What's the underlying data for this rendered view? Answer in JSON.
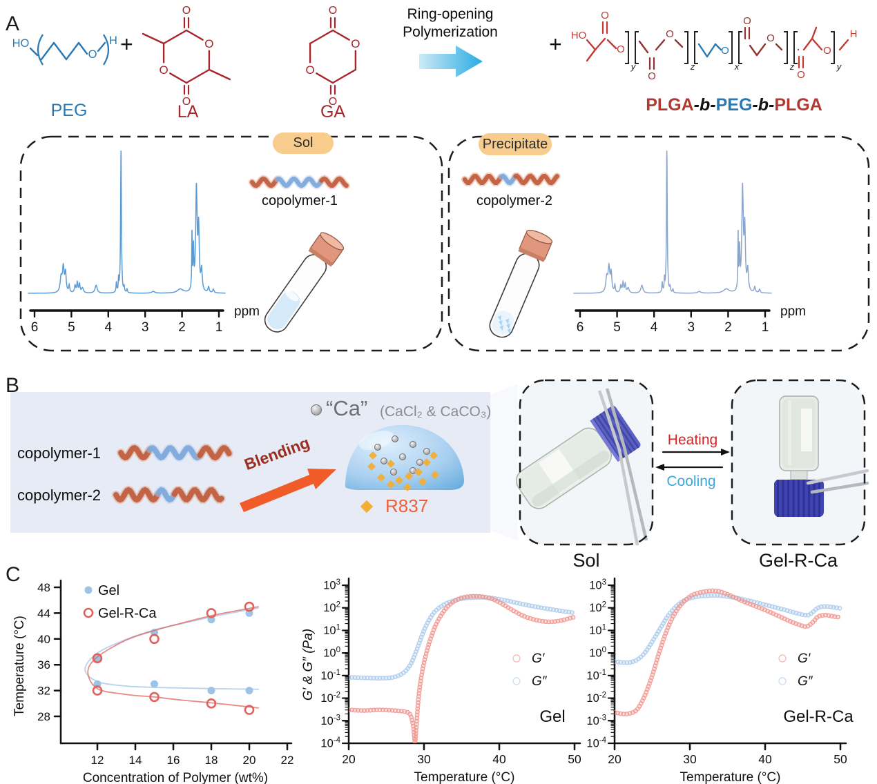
{
  "panel_a": {
    "label": "A",
    "plus": "+",
    "arrow_caption": [
      "Ring-opening",
      "Polymerization"
    ],
    "monomer_labels": {
      "peg": "PEG",
      "la": "LA",
      "ga": "GA"
    },
    "symbols": {
      "ho": "HO",
      "h": "H",
      "o": "O",
      "sub_x": "x",
      "sub_y": "y",
      "sub_z": "z"
    },
    "product_label": [
      {
        "t": "PLGA",
        "c": "#b03a32"
      },
      {
        "t": "-b-",
        "c": "#111111"
      },
      {
        "t": "PEG",
        "c": "#2878b4"
      },
      {
        "t": "-b-",
        "c": "#111111"
      },
      {
        "t": "PLGA",
        "c": "#b03a32"
      }
    ],
    "sol_card": {
      "badge": "Sol",
      "copolymer": "copolymer-1"
    },
    "precipitate_card": {
      "badge": "Precipitate",
      "copolymer": "copolymer-2"
    },
    "nmr": {
      "xticks": [
        6,
        5,
        4,
        3,
        2,
        1
      ],
      "unit": "ppm",
      "peaks": [
        [
          5.28,
          0.1,
          0.03
        ],
        [
          5.22,
          0.17,
          0.028
        ],
        [
          5.16,
          0.13,
          0.022
        ],
        [
          5.06,
          0.05,
          0.015
        ],
        [
          4.9,
          0.05,
          0.02
        ],
        [
          4.84,
          0.07,
          0.018
        ],
        [
          4.78,
          0.06,
          0.018
        ],
        [
          4.7,
          0.035,
          0.03
        ],
        [
          4.33,
          0.055,
          0.035
        ],
        [
          3.78,
          0.07,
          0.012
        ],
        [
          3.72,
          0.09,
          0.01
        ],
        [
          3.655,
          1.0,
          0.013
        ],
        [
          3.57,
          0.035,
          0.012
        ],
        [
          3.49,
          0.025,
          0.012
        ],
        [
          2.78,
          0.012,
          0.05
        ],
        [
          2.05,
          0.028,
          0.09
        ],
        [
          1.73,
          0.4,
          0.009
        ],
        [
          1.69,
          0.28,
          0.012
        ],
        [
          1.61,
          0.72,
          0.024
        ],
        [
          1.55,
          0.42,
          0.02
        ],
        [
          1.47,
          0.15,
          0.022
        ],
        [
          1.28,
          0.04,
          0.02
        ],
        [
          1.15,
          0.025,
          0.02
        ]
      ]
    }
  },
  "panel_b": {
    "label": "B",
    "copolymer1": "copolymer-1",
    "copolymer2": "copolymer-2",
    "blending": "Blending",
    "ca_title": "“Ca”",
    "ca_detail": "(CaCl₂ & CaCO₃)",
    "r837": "R837",
    "heating": "Heating",
    "cooling": "Cooling",
    "sol_photo_label": "Sol",
    "gel_photo_label": "Gel-R-Ca"
  },
  "panel_c": {
    "label": "C"
  },
  "chart_data": [
    {
      "type": "scatter",
      "title": "",
      "xlabel": "Concentration of Polymer (wt%)",
      "ylabel": "Temperature (°C)",
      "xlim": [
        10.5,
        22
      ],
      "ylim": [
        26,
        48
      ],
      "xticks": [
        12,
        14,
        16,
        18,
        20,
        22
      ],
      "yticks": [
        28,
        32,
        36,
        40,
        44,
        48
      ],
      "legend_position": "top-left",
      "series": [
        {
          "name": "Gel",
          "marker": "filled-circle",
          "color": "#9dc3e6",
          "points": [
            [
              12,
              37
            ],
            [
              15,
              41
            ],
            [
              18,
              43
            ],
            [
              20,
              44
            ],
            [
              12,
              33
            ],
            [
              15,
              33
            ],
            [
              18,
              32
            ],
            [
              20,
              32
            ]
          ],
          "curve_upper": [
            [
              12,
              37.8
            ],
            [
              13.5,
              39.9
            ],
            [
              15,
              41.4
            ],
            [
              16.5,
              42.4
            ],
            [
              18,
              43.4
            ],
            [
              19.2,
              44.1
            ],
            [
              20.5,
              44.8
            ]
          ],
          "curve_vertex": [
            11.35,
            35.3
          ],
          "curve_lower": [
            [
              12,
              33.4
            ],
            [
              13.5,
              32.7
            ],
            [
              15,
              32.5
            ],
            [
              16.5,
              32.4
            ],
            [
              18,
              32.3
            ],
            [
              20.5,
              32.2
            ]
          ]
        },
        {
          "name": "Gel-R-Ca",
          "marker": "open-circle",
          "color": "#e2625b",
          "points": [
            [
              12,
              37
            ],
            [
              15,
              40
            ],
            [
              18,
              44
            ],
            [
              20,
              45
            ],
            [
              12,
              32
            ],
            [
              15,
              31
            ],
            [
              18,
              30
            ],
            [
              20,
              29
            ]
          ],
          "curve_upper": [
            [
              12,
              37.2
            ],
            [
              13.5,
              39.8
            ],
            [
              15,
              41.3
            ],
            [
              16.5,
              42.5
            ],
            [
              18,
              43.6
            ],
            [
              19.2,
              44.3
            ],
            [
              20.5,
              45.0
            ]
          ],
          "curve_vertex": [
            11.5,
            34.9
          ],
          "curve_lower": [
            [
              12,
              32.3
            ],
            [
              13.5,
              31.4
            ],
            [
              15,
              31.0
            ],
            [
              16.5,
              30.5
            ],
            [
              18,
              30.1
            ],
            [
              20.5,
              29.3
            ]
          ]
        }
      ]
    },
    {
      "type": "scatter",
      "xlabel": "Temperature (°C)",
      "ylabel": "G′ & G″ (Pa)",
      "annotation": "Gel",
      "xlim": [
        20,
        50
      ],
      "xticks": [
        20,
        30,
        40,
        50
      ],
      "ylog": true,
      "ylim_exp": [
        -4,
        3
      ],
      "legend": [
        {
          "label": "G′",
          "color": "#f1948d"
        },
        {
          "label": "G″",
          "color": "#aac9ea"
        }
      ],
      "series": [
        {
          "name": "G′",
          "color": "#f1948d",
          "points": [
            [
              20,
              -2.52
            ],
            [
              22,
              -2.55
            ],
            [
              24,
              -2.52
            ],
            [
              26,
              -2.55
            ],
            [
              27.5,
              -2.6
            ],
            [
              28.2,
              -2.75
            ],
            [
              28.6,
              -3.3
            ],
            [
              28.8,
              -3.95
            ],
            [
              29.0,
              -3.2
            ],
            [
              29.3,
              -1.9
            ],
            [
              29.8,
              -0.75
            ],
            [
              30.4,
              0.1
            ],
            [
              31,
              0.75
            ],
            [
              31.8,
              1.4
            ],
            [
              33,
              2.0
            ],
            [
              34.5,
              2.38
            ],
            [
              36,
              2.5
            ],
            [
              37.5,
              2.5
            ],
            [
              39,
              2.4
            ],
            [
              40.5,
              2.15
            ],
            [
              42,
              1.85
            ],
            [
              43.5,
              1.6
            ],
            [
              45,
              1.45
            ],
            [
              46.5,
              1.38
            ],
            [
              48,
              1.42
            ],
            [
              49.5,
              1.55
            ],
            [
              50,
              1.6
            ]
          ]
        },
        {
          "name": "G″",
          "color": "#aac9ea",
          "points": [
            [
              20,
              -1.08
            ],
            [
              22,
              -1.1
            ],
            [
              24,
              -1.12
            ],
            [
              25.5,
              -1.1
            ],
            [
              26.5,
              -1.02
            ],
            [
              27.5,
              -0.82
            ],
            [
              28.3,
              -0.45
            ],
            [
              29,
              0.1
            ],
            [
              29.7,
              0.75
            ],
            [
              30.5,
              1.35
            ],
            [
              31.5,
              1.85
            ],
            [
              33,
              2.2
            ],
            [
              35,
              2.4
            ],
            [
              37,
              2.46
            ],
            [
              38.5,
              2.45
            ],
            [
              40,
              2.38
            ],
            [
              41.5,
              2.28
            ],
            [
              43,
              2.17
            ],
            [
              44.5,
              2.07
            ],
            [
              46,
              1.98
            ],
            [
              47.5,
              1.9
            ],
            [
              49,
              1.82
            ],
            [
              50,
              1.78
            ]
          ]
        }
      ]
    },
    {
      "type": "scatter",
      "xlabel": "Temperature (°C)",
      "ylabel": "",
      "annotation": "Gel-R-Ca",
      "xlim": [
        20,
        50
      ],
      "xticks": [
        20,
        30,
        40,
        50
      ],
      "ylog": true,
      "ylim_exp": [
        -4,
        3
      ],
      "legend": [
        {
          "label": "G′",
          "color": "#f1948d"
        },
        {
          "label": "G″",
          "color": "#aac9ea"
        }
      ],
      "series": [
        {
          "name": "G′",
          "color": "#f1948d",
          "points": [
            [
              20,
              -2.62
            ],
            [
              21,
              -2.7
            ],
            [
              22,
              -2.68
            ],
            [
              23,
              -2.5
            ],
            [
              24,
              -1.9
            ],
            [
              25,
              -1.0
            ],
            [
              26,
              0.1
            ],
            [
              27,
              1.05
            ],
            [
              28,
              1.75
            ],
            [
              29,
              2.2
            ],
            [
              30,
              2.5
            ],
            [
              31,
              2.65
            ],
            [
              32,
              2.72
            ],
            [
              33,
              2.76
            ],
            [
              34,
              2.72
            ],
            [
              35,
              2.6
            ],
            [
              36,
              2.45
            ],
            [
              37,
              2.3
            ],
            [
              38.5,
              2.1
            ],
            [
              40,
              1.9
            ],
            [
              41.5,
              1.68
            ],
            [
              43,
              1.45
            ],
            [
              44.5,
              1.25
            ],
            [
              45.5,
              1.17
            ],
            [
              46.3,
              1.35
            ],
            [
              47,
              1.6
            ],
            [
              48,
              1.68
            ],
            [
              49,
              1.62
            ],
            [
              50,
              1.58
            ]
          ]
        },
        {
          "name": "G″",
          "color": "#aac9ea",
          "points": [
            [
              20,
              -0.38
            ],
            [
              21,
              -0.42
            ],
            [
              22,
              -0.42
            ],
            [
              23,
              -0.3
            ],
            [
              24,
              0.0
            ],
            [
              25,
              0.5
            ],
            [
              26,
              1.05
            ],
            [
              27,
              1.6
            ],
            [
              28,
              2.0
            ],
            [
              29,
              2.28
            ],
            [
              30,
              2.42
            ],
            [
              31,
              2.5
            ],
            [
              32,
              2.53
            ],
            [
              33.5,
              2.55
            ],
            [
              35,
              2.5
            ],
            [
              36.5,
              2.42
            ],
            [
              38,
              2.3
            ],
            [
              39.5,
              2.18
            ],
            [
              41,
              2.05
            ],
            [
              42.5,
              1.92
            ],
            [
              44,
              1.78
            ],
            [
              45.3,
              1.68
            ],
            [
              46,
              1.72
            ],
            [
              46.8,
              1.95
            ],
            [
              47.5,
              2.05
            ],
            [
              48.5,
              2.05
            ],
            [
              49.5,
              2.0
            ],
            [
              50,
              1.98
            ]
          ]
        }
      ]
    }
  ],
  "colors": {
    "peg_blue": "#2878b4",
    "monomer_red": "#a8262b",
    "product_red1": "#c23a32",
    "product_red2": "#8e3430",
    "badge_bg": "#f7cc8c",
    "nmr_blue_left": "#5b9bd5",
    "nmr_blue_right": "#8ba6cc",
    "panelb_bg": "#e6ebf5",
    "arrow_orange": "#f15a29",
    "blending_red": "#9c2c20",
    "r837_orange": "#ef5f38",
    "heating_red": "#e02020",
    "cooling_blue": "#3ba8da"
  }
}
